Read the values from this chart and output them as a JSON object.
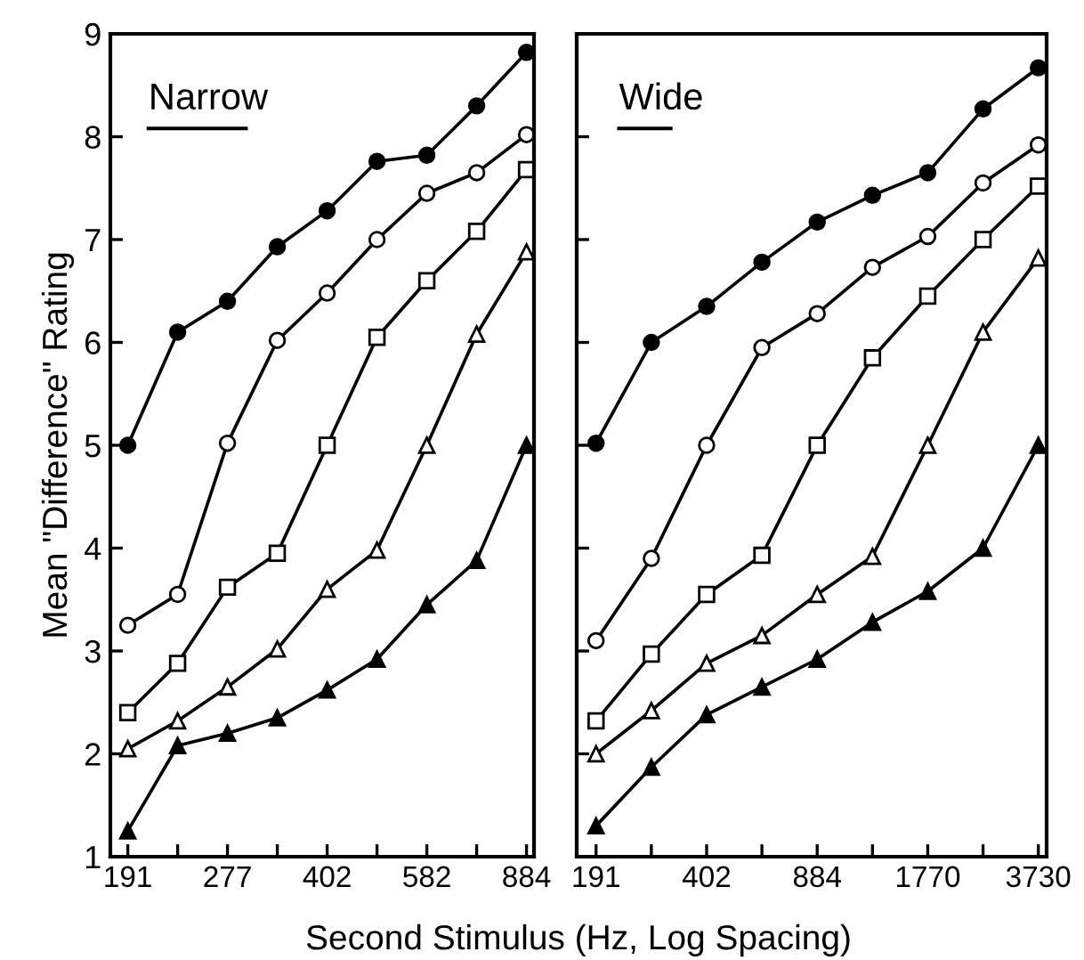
{
  "chart_data": [
    {
      "type": "line",
      "title": "Narrow",
      "ylabel": "Mean \"Difference\" Rating",
      "xlabel": "Second Stimulus (Hz, Log Spacing)",
      "categories": [
        "191",
        null,
        "277",
        null,
        "402",
        null,
        "582",
        null,
        "884"
      ],
      "ylim": [
        1,
        9
      ],
      "yticks": [
        1,
        2,
        3,
        4,
        5,
        6,
        7,
        8,
        9
      ],
      "grid": false,
      "legend": false,
      "series": [
        {
          "color": "#000000",
          "marker": "circle",
          "values": [
            5.0,
            6.1,
            6.4,
            6.93,
            7.28,
            7.76,
            7.82,
            8.3,
            8.82
          ]
        },
        {
          "color": "#ffffff",
          "marker": "circle",
          "values": [
            3.25,
            3.55,
            5.02,
            6.02,
            6.48,
            7.0,
            7.45,
            7.65,
            8.02
          ]
        },
        {
          "color": "#ffffff",
          "marker": "square",
          "values": [
            2.4,
            2.88,
            3.62,
            3.95,
            5.0,
            6.05,
            6.6,
            7.08,
            7.68
          ]
        },
        {
          "color": "#ffffff",
          "marker": "triangle",
          "values": [
            2.05,
            2.32,
            2.65,
            3.02,
            3.6,
            3.98,
            5.0,
            6.08,
            6.88
          ]
        },
        {
          "color": "#000000",
          "marker": "triangle",
          "values": [
            1.25,
            2.08,
            2.2,
            2.35,
            2.62,
            2.92,
            3.45,
            3.88,
            5.0
          ]
        }
      ]
    },
    {
      "type": "line",
      "title": "Wide",
      "categories": [
        "191",
        null,
        "402",
        null,
        "884",
        null,
        "1770",
        null,
        "3730"
      ],
      "ylim": [
        1,
        9
      ],
      "yticks": [
        1,
        2,
        3,
        4,
        5,
        6,
        7,
        8,
        9
      ],
      "tick_labels": "x",
      "grid": false,
      "legend": false,
      "series": [
        {
          "color": "#000000",
          "marker": "circle",
          "values": [
            5.02,
            6.0,
            6.35,
            6.78,
            7.17,
            7.43,
            7.65,
            8.27,
            8.67
          ]
        },
        {
          "color": "#ffffff",
          "marker": "circle",
          "values": [
            3.1,
            3.9,
            5.0,
            5.95,
            6.28,
            6.73,
            7.03,
            7.55,
            7.92
          ]
        },
        {
          "color": "#ffffff",
          "marker": "square",
          "values": [
            2.32,
            2.97,
            3.55,
            3.93,
            5.0,
            5.85,
            6.45,
            7.0,
            7.52
          ]
        },
        {
          "color": "#ffffff",
          "marker": "triangle",
          "values": [
            2.0,
            2.42,
            2.88,
            3.15,
            3.55,
            3.92,
            5.0,
            6.1,
            6.82
          ]
        },
        {
          "color": "#000000",
          "marker": "triangle",
          "values": [
            1.3,
            1.87,
            2.38,
            2.65,
            2.92,
            3.28,
            3.58,
            4.0,
            5.0
          ]
        }
      ]
    }
  ]
}
